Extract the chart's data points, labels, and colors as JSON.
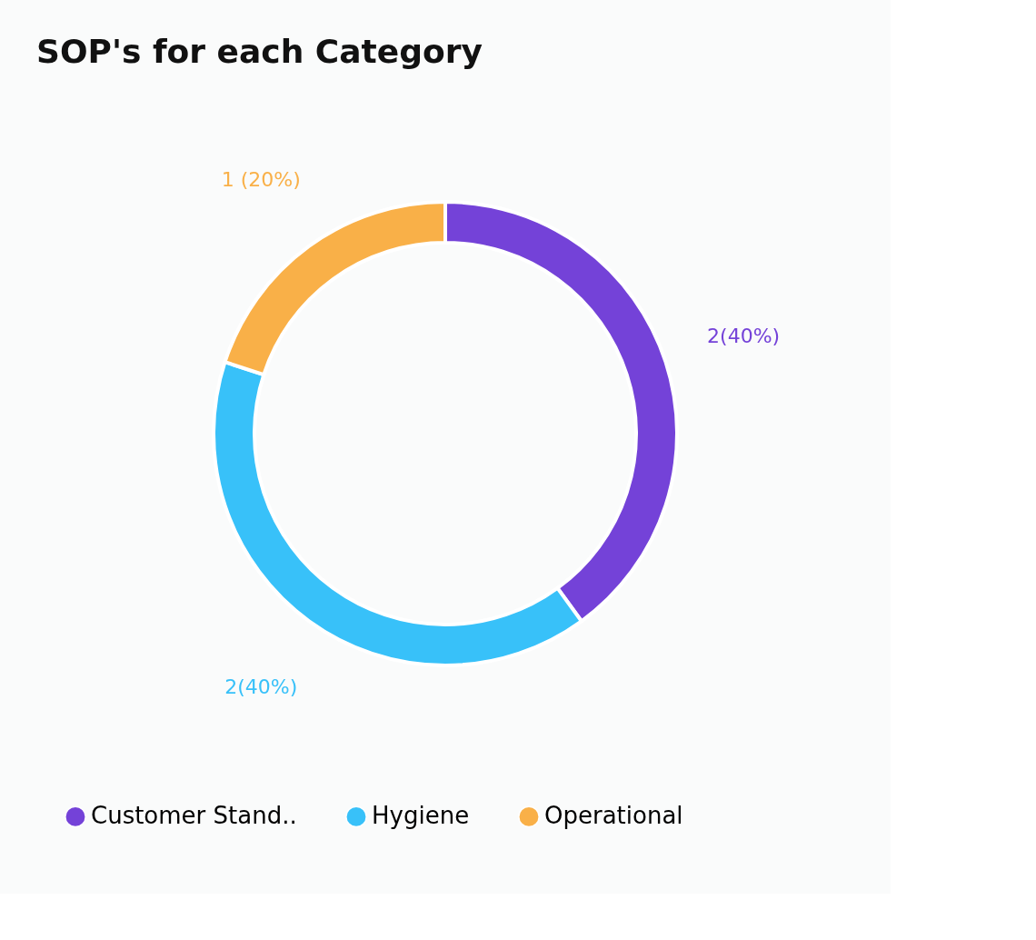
{
  "chart_data": {
    "type": "donut",
    "title": "SOP's for each Category",
    "categories": [
      "Customer Stand..",
      "Hygiene",
      "Operational"
    ],
    "values": [
      2,
      2,
      1
    ],
    "colors": [
      "#7442d8",
      "#38c1f9",
      "#f9b048"
    ],
    "value_labels": [
      "2(40%)",
      "2(40%)",
      "1 (20%)"
    ],
    "legend": "bottom"
  }
}
